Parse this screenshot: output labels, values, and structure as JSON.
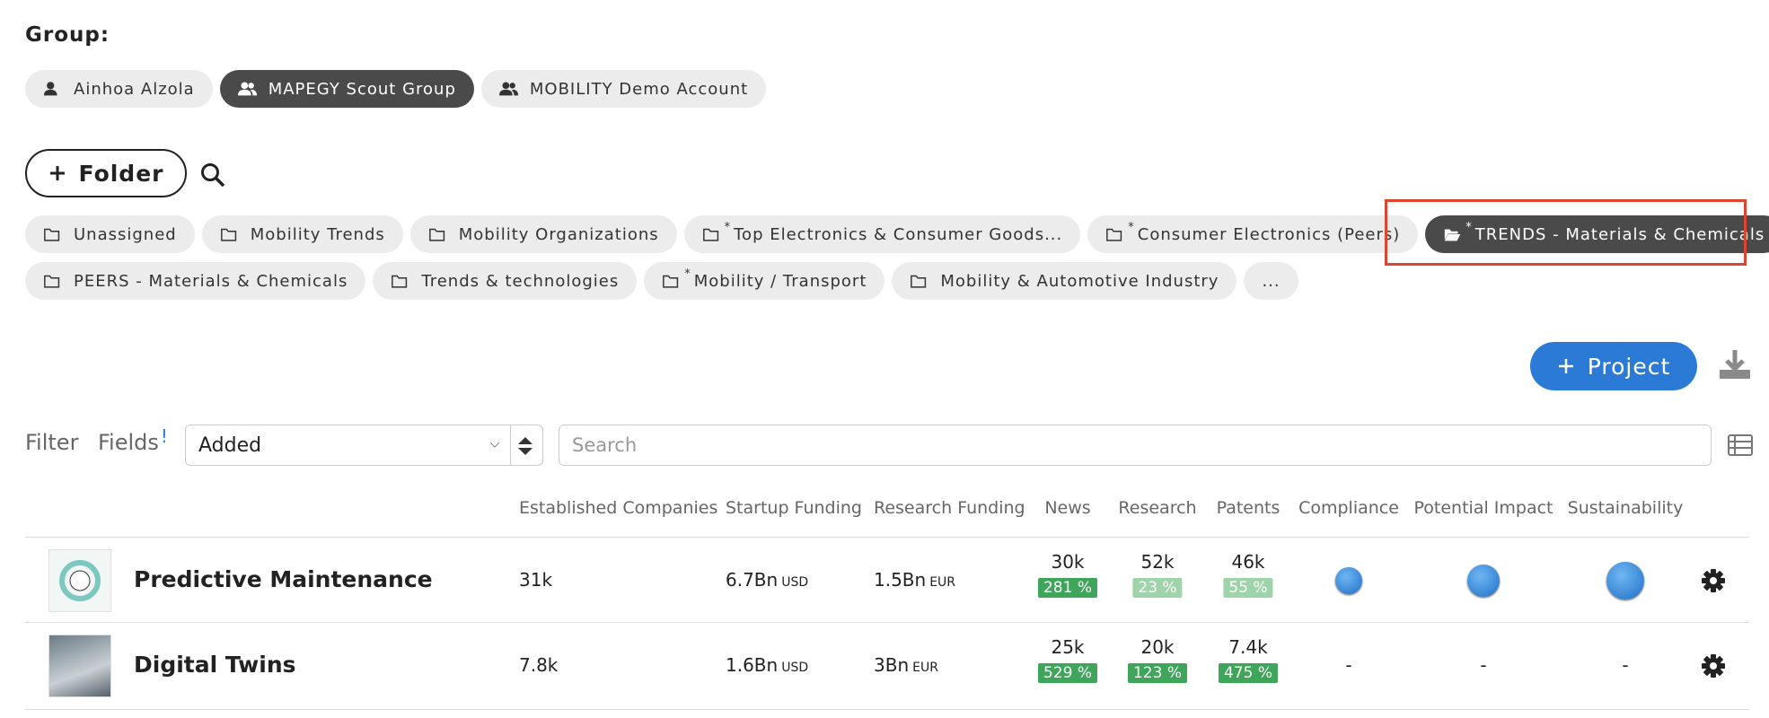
{
  "group_label": "Group:",
  "groups": [
    {
      "label": "Ainhoa Alzola",
      "icon": "user"
    },
    {
      "label": "MAPEGY Scout Group",
      "icon": "users",
      "active": true
    },
    {
      "label": "MOBILITY Demo Account",
      "icon": "users"
    }
  ],
  "folder_button": "Folder",
  "folders": [
    [
      {
        "label": "Unassigned"
      },
      {
        "label": "Mobility Trends"
      },
      {
        "label": "Mobility Organizations"
      },
      {
        "label": "Top Electronics & Consumer Goods...",
        "starred": true
      },
      {
        "label": "Consumer Electronics (Peers)",
        "starred": true
      },
      {
        "label": "TRENDS - Materials & Chemicals",
        "starred": true,
        "active": true
      }
    ],
    [
      {
        "label": "PEERS - Materials & Chemicals"
      },
      {
        "label": "Trends & technologies"
      },
      {
        "label": "Mobility / Transport",
        "starred": true
      },
      {
        "label": "Mobility & Automotive Industry"
      },
      {
        "label": "..."
      }
    ]
  ],
  "project_button": "Project",
  "filter": "Filter",
  "fields": "Fields",
  "fields_marker": "!",
  "sort": "Added",
  "search_placeholder": "Search",
  "table": {
    "columns": [
      "Established Companies",
      "Startup Funding",
      "Research Funding",
      "News",
      "Research",
      "Patents",
      "Compliance",
      "Potential Impact",
      "Sustainability"
    ],
    "rows": [
      {
        "name": "Predictive Maintenance",
        "established": "31k",
        "startup": "6.7Bn",
        "startup_unit": "USD",
        "research_funding": "1.5Bn",
        "research_funding_unit": "EUR",
        "news": "30k",
        "news_change": "281 %",
        "research": "52k",
        "research_change": "23 %",
        "patents": "46k",
        "patents_change": "55 %"
      },
      {
        "name": "Digital Twins",
        "established": "7.8k",
        "startup": "1.6Bn",
        "startup_unit": "USD",
        "research_funding": "3Bn",
        "research_funding_unit": "EUR",
        "news": "25k",
        "news_change": "529 %",
        "research": "20k",
        "research_change": "123 %",
        "patents": "7.4k",
        "patents_change": "475 %",
        "compliance": "-",
        "potential_impact": "-",
        "sustainability": "-"
      }
    ]
  }
}
